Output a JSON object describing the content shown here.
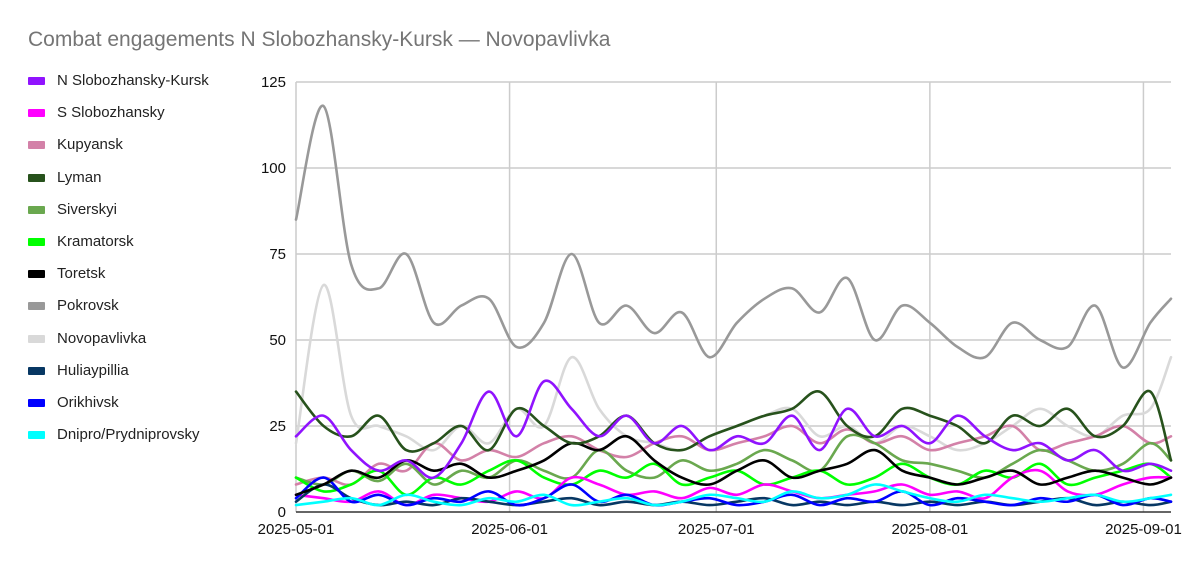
{
  "chart_data": {
    "type": "line",
    "title": "Combat engagements N Slobozhansky-Kursk — Novopavlivka",
    "legend_position": "left",
    "grid": true,
    "x_axis": {
      "type": "date",
      "range": [
        "2025-05-01",
        "2025-09-05"
      ],
      "tick_labels": [
        "2025-05-01",
        "2025-06-01",
        "2025-07-01",
        "2025-08-01",
        "2025-09-01"
      ]
    },
    "y_axis": {
      "range": [
        0,
        125
      ],
      "ticks": [
        0,
        25,
        50,
        75,
        100,
        125
      ]
    },
    "sample_dates": [
      "2025-05-01",
      "2025-05-05",
      "2025-05-09",
      "2025-05-13",
      "2025-05-17",
      "2025-05-21",
      "2025-05-25",
      "2025-05-29",
      "2025-06-02",
      "2025-06-06",
      "2025-06-10",
      "2025-06-14",
      "2025-06-18",
      "2025-06-22",
      "2025-06-26",
      "2025-06-30",
      "2025-07-04",
      "2025-07-08",
      "2025-07-12",
      "2025-07-16",
      "2025-07-20",
      "2025-07-24",
      "2025-07-28",
      "2025-08-01",
      "2025-08-05",
      "2025-08-09",
      "2025-08-13",
      "2025-08-17",
      "2025-08-21",
      "2025-08-25",
      "2025-08-29",
      "2025-09-02",
      "2025-09-05"
    ],
    "series": [
      {
        "name": "N Slobozhansky-Kursk",
        "color": "#9013FE",
        "values": [
          22,
          28,
          18,
          12,
          15,
          10,
          20,
          35,
          22,
          38,
          30,
          22,
          28,
          20,
          25,
          18,
          22,
          20,
          28,
          18,
          30,
          22,
          25,
          20,
          28,
          22,
          18,
          20,
          15,
          18,
          12,
          14,
          12
        ]
      },
      {
        "name": "S Slobozhansky",
        "color": "#FF00FF",
        "values": [
          5,
          4,
          3,
          6,
          2,
          5,
          4,
          3,
          6,
          4,
          10,
          8,
          5,
          6,
          4,
          7,
          5,
          8,
          6,
          4,
          5,
          6,
          8,
          5,
          6,
          4,
          10,
          12,
          6,
          5,
          8,
          10,
          10
        ]
      },
      {
        "name": "Kupyansk",
        "color": "#D381A8",
        "values": [
          8,
          10,
          8,
          14,
          12,
          20,
          15,
          18,
          16,
          20,
          22,
          18,
          16,
          20,
          22,
          18,
          20,
          22,
          25,
          20,
          24,
          20,
          22,
          18,
          20,
          22,
          25,
          18,
          20,
          22,
          25,
          20,
          22
        ]
      },
      {
        "name": "Lyman",
        "color": "#27521C",
        "values": [
          35,
          25,
          22,
          28,
          18,
          20,
          25,
          18,
          30,
          25,
          20,
          22,
          28,
          20,
          18,
          22,
          25,
          28,
          30,
          35,
          25,
          22,
          30,
          28,
          25,
          20,
          28,
          25,
          30,
          22,
          25,
          35,
          15
        ]
      },
      {
        "name": "Siverskyi",
        "color": "#6AA84F",
        "values": [
          10,
          8,
          12,
          9,
          14,
          8,
          12,
          10,
          15,
          12,
          10,
          18,
          12,
          10,
          15,
          12,
          14,
          18,
          15,
          12,
          22,
          20,
          15,
          14,
          12,
          10,
          14,
          18,
          15,
          12,
          14,
          20,
          15
        ]
      },
      {
        "name": "Kramatorsk",
        "color": "#00FF00",
        "values": [
          10,
          6,
          8,
          12,
          5,
          10,
          8,
          12,
          15,
          10,
          8,
          12,
          10,
          14,
          8,
          10,
          12,
          8,
          10,
          12,
          8,
          10,
          14,
          10,
          8,
          12,
          10,
          14,
          8,
          10,
          12,
          14,
          10
        ]
      },
      {
        "name": "Toretsk",
        "color": "#000000",
        "values": [
          5,
          8,
          12,
          10,
          15,
          12,
          14,
          10,
          12,
          15,
          20,
          18,
          22,
          15,
          10,
          8,
          12,
          15,
          10,
          12,
          14,
          18,
          12,
          10,
          8,
          10,
          12,
          8,
          10,
          12,
          10,
          8,
          10
        ]
      },
      {
        "name": "Pokrovsk",
        "color": "#999999",
        "values": [
          85,
          118,
          72,
          65,
          75,
          55,
          60,
          62,
          48,
          55,
          75,
          55,
          60,
          52,
          58,
          45,
          55,
          62,
          65,
          58,
          68,
          50,
          60,
          55,
          48,
          45,
          55,
          50,
          48,
          60,
          42,
          55,
          62
        ]
      },
      {
        "name": "Novopavlivka",
        "color": "#D9D9D9",
        "values": [
          20,
          66,
          28,
          25,
          22,
          18,
          25,
          20,
          30,
          25,
          45,
          30,
          22,
          20,
          18,
          22,
          25,
          28,
          30,
          22,
          25,
          20,
          25,
          22,
          18,
          20,
          25,
          30,
          25,
          22,
          28,
          30,
          45
        ]
      },
      {
        "name": "Huliaypillia",
        "color": "#073763",
        "values": [
          3,
          8,
          4,
          2,
          3,
          2,
          4,
          3,
          2,
          3,
          4,
          2,
          3,
          2,
          3,
          2,
          3,
          4,
          2,
          3,
          2,
          3,
          2,
          3,
          2,
          3,
          2,
          3,
          4,
          2,
          3,
          2,
          3
        ]
      },
      {
        "name": "Orikhivsk",
        "color": "#0000FF",
        "values": [
          4,
          10,
          3,
          5,
          2,
          4,
          3,
          6,
          2,
          4,
          8,
          3,
          5,
          2,
          3,
          4,
          2,
          3,
          5,
          2,
          4,
          3,
          6,
          2,
          4,
          3,
          2,
          4,
          3,
          5,
          2,
          4,
          3
        ]
      },
      {
        "name": "Dnipro/Prydniprovsky",
        "color": "#00FFFF",
        "values": [
          2,
          3,
          4,
          2,
          5,
          3,
          2,
          4,
          3,
          5,
          2,
          3,
          4,
          2,
          3,
          5,
          4,
          3,
          6,
          4,
          5,
          8,
          6,
          4,
          3,
          5,
          4,
          3,
          4,
          5,
          3,
          4,
          5
        ]
      }
    ]
  }
}
